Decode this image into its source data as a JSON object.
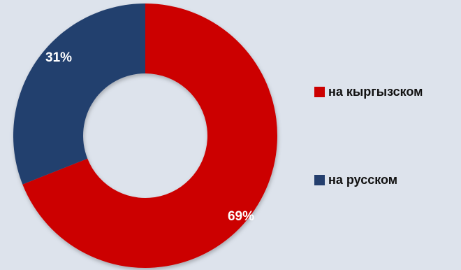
{
  "chart_data": {
    "type": "pie",
    "variant": "donut",
    "title": "",
    "legend_position": "right",
    "slices": [
      {
        "name": "на кыргызском",
        "value": 69,
        "label": "69%",
        "color": "#cc0000"
      },
      {
        "name": "на русском",
        "value": 31,
        "label": "31%",
        "color": "#243f6e"
      }
    ]
  }
}
